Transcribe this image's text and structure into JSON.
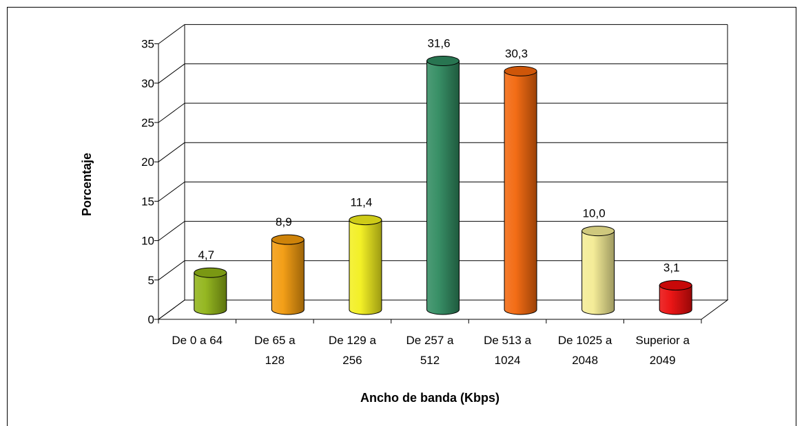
{
  "chart_data": {
    "type": "bar",
    "title": "",
    "xlabel": "Ancho de banda (Kbps)",
    "ylabel": "Porcentaje",
    "ylim": [
      0,
      35
    ],
    "yticks": [
      "0",
      "5",
      "10",
      "15",
      "20",
      "25",
      "30",
      "35"
    ],
    "grid": true,
    "legend": "none",
    "categories": [
      [
        "De 0 a 64"
      ],
      [
        "De 65 a",
        "128"
      ],
      [
        "De 129 a",
        "256"
      ],
      [
        "De 257 a",
        "512"
      ],
      [
        "De 513 a",
        "1024"
      ],
      [
        "De 1025 a",
        "2048"
      ],
      [
        "Superior a",
        "2049"
      ]
    ],
    "values": [
      4.7,
      8.9,
      11.4,
      31.6,
      30.3,
      10.0,
      3.1
    ],
    "value_labels": [
      "4,7",
      "8,9",
      "11,4",
      "31,6",
      "30,3",
      "10,0",
      "3,1"
    ],
    "colors": [
      "#8fb316",
      "#f29a0c",
      "#f2ef1c",
      "#2f8a5f",
      "#f2650a",
      "#f3eb93",
      "#ea0a0a"
    ]
  }
}
